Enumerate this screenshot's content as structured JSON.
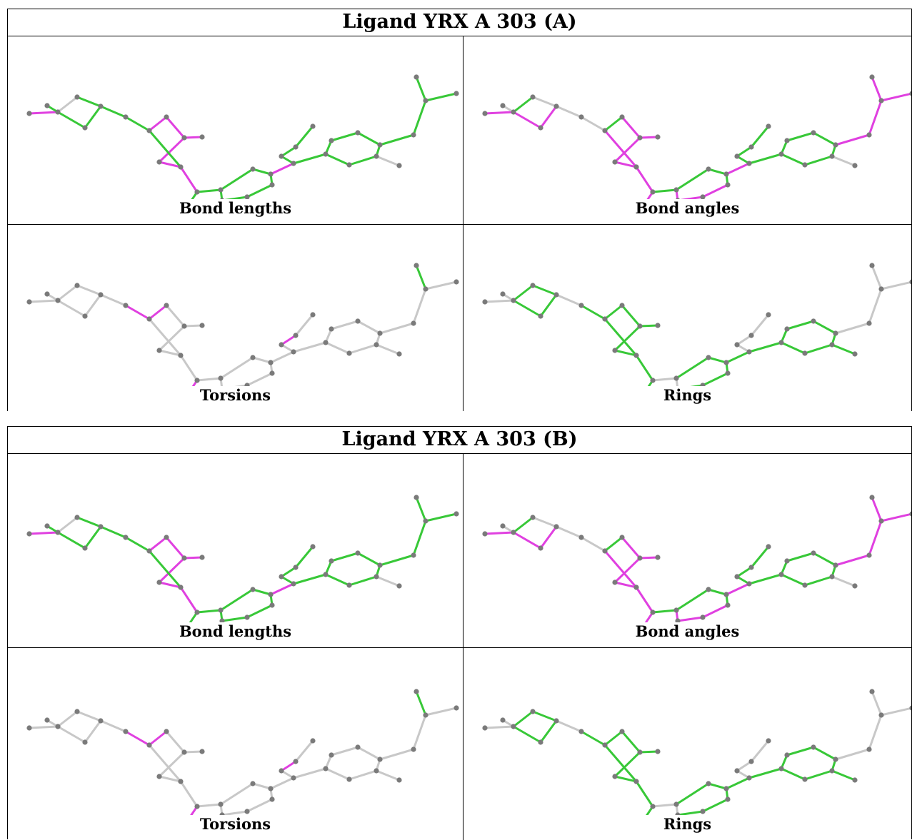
{
  "blocks": [
    {
      "title": "Ligand YRX A 303 (A)",
      "panels": [
        {
          "caption": "Bond lengths",
          "metric": "bond-lengths"
        },
        {
          "caption": "Bond angles",
          "metric": "bond-angles"
        },
        {
          "caption": "Torsions",
          "metric": "torsions"
        },
        {
          "caption": "Rings",
          "metric": "rings"
        }
      ]
    },
    {
      "title": "Ligand YRX A 303 (B)",
      "panels": [
        {
          "caption": "Bond lengths",
          "metric": "bond-lengths"
        },
        {
          "caption": "Bond angles",
          "metric": "bond-angles"
        },
        {
          "caption": "Torsions",
          "metric": "torsions"
        },
        {
          "caption": "Rings",
          "metric": "rings"
        }
      ]
    }
  ],
  "colors": {
    "outlier": "#e040e0",
    "outlier_dark": "#9a209a",
    "ok": "#38c838",
    "ok_dark": "#1f8f1f",
    "neutral": "#c8c8c8",
    "atom": "#7a7a7a"
  }
}
